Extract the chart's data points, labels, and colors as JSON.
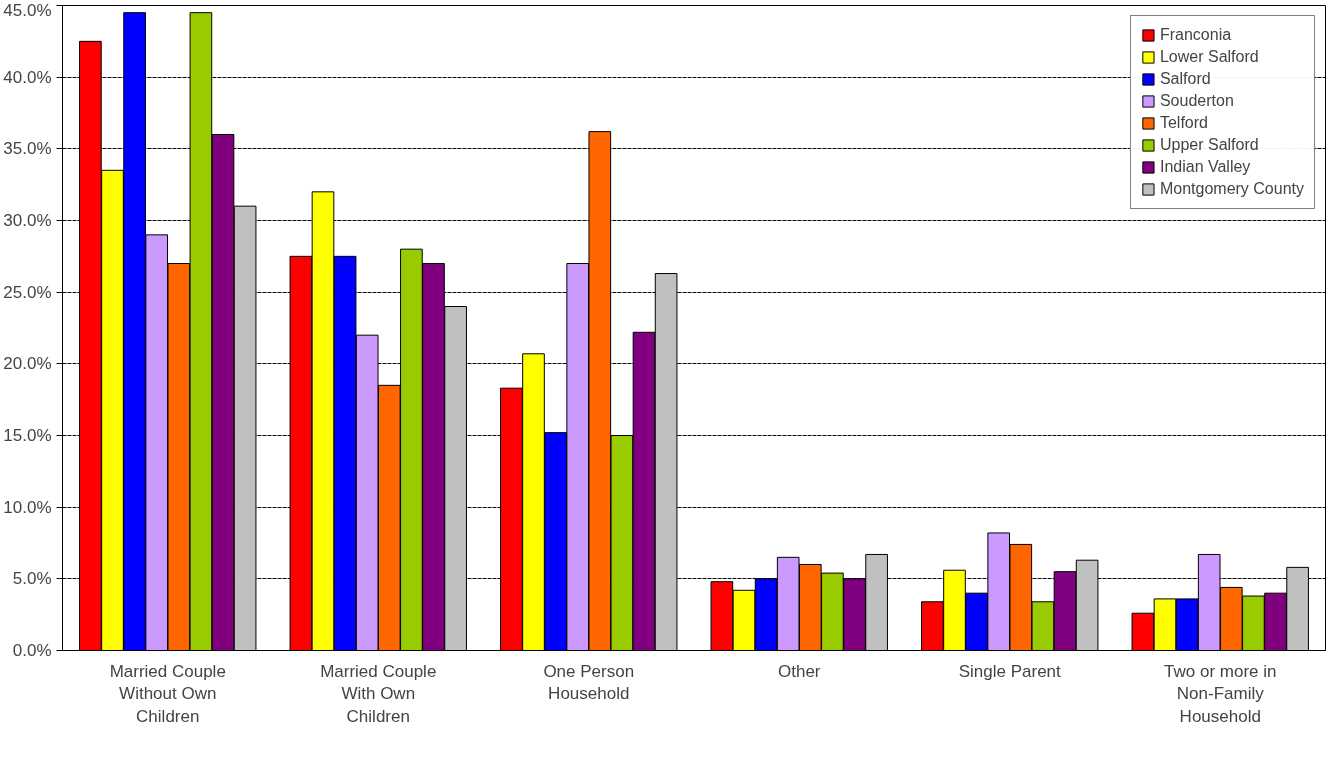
{
  "chart_data": {
    "type": "bar",
    "categories": [
      "Married Couple\nWithout Own\nChildren",
      "Married Couple\nWith Own\nChildren",
      "One Person\nHousehold",
      "Other",
      "Single Parent",
      "Two or more in\nNon-Family\nHousehold"
    ],
    "series": [
      {
        "name": "Franconia",
        "color": "#ff0000",
        "values": [
          42.5,
          27.5,
          18.3,
          4.8,
          3.4,
          2.6
        ]
      },
      {
        "name": "Lower Salford",
        "color": "#ffff00",
        "values": [
          33.5,
          32.0,
          20.7,
          4.2,
          5.6,
          3.6
        ]
      },
      {
        "name": "Salford",
        "color": "#0000ff",
        "values": [
          44.5,
          27.5,
          15.2,
          5.0,
          4.0,
          3.6
        ]
      },
      {
        "name": "Souderton",
        "color": "#cc99ff",
        "values": [
          29.0,
          22.0,
          27.0,
          6.5,
          8.2,
          6.7
        ]
      },
      {
        "name": "Telford",
        "color": "#ff6600",
        "values": [
          27.0,
          18.5,
          36.2,
          6.0,
          7.4,
          4.4
        ]
      },
      {
        "name": "Upper Salford",
        "color": "#99cc00",
        "values": [
          44.5,
          28.0,
          15.0,
          5.4,
          3.4,
          3.8
        ]
      },
      {
        "name": "Indian Valley",
        "color": "#800080",
        "values": [
          36.0,
          27.0,
          22.2,
          5.0,
          5.5,
          4.0
        ]
      },
      {
        "name": "Montgomery County",
        "color": "#c0c0c0",
        "values": [
          31.0,
          24.0,
          26.3,
          6.7,
          6.3,
          5.8
        ]
      }
    ],
    "ylim": [
      0,
      45
    ],
    "yticks": [
      {
        "value": 0,
        "label": "0.0%"
      },
      {
        "value": 5,
        "label": "5.0%"
      },
      {
        "value": 10,
        "label": "10.0%"
      },
      {
        "value": 15,
        "label": "15.0%"
      },
      {
        "value": 20,
        "label": "20.0%"
      },
      {
        "value": 25,
        "label": "25.0%"
      },
      {
        "value": 30,
        "label": "30.0%"
      },
      {
        "value": 35,
        "label": "35.0%"
      },
      {
        "value": 40,
        "label": "40.0%"
      },
      {
        "value": 45,
        "label": "45.0%"
      }
    ],
    "grid": "y",
    "legend": "top right"
  }
}
